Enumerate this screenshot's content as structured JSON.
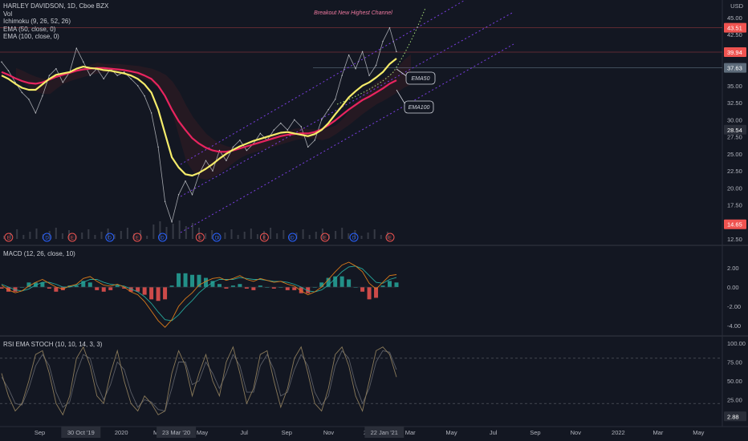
{
  "legend": {
    "symbol": "HARLEY DAVIDSON, 1D, Cboe BZX",
    "lines": [
      "Vol",
      "Ichimoku (9, 26, 52, 26)",
      "EMA (50, close, 0)",
      "EMA (100, close, 0)"
    ]
  },
  "currency": "USD",
  "panes": {
    "macd_title": "MACD (12, 26, close, 10)",
    "rsi_title": "RSI EMA STOCH (10, 10, 14, 3, 3)"
  },
  "annotations": {
    "channel": "Breakout New Highest Channel",
    "ema50": "EMA50",
    "ema100": "EMA100"
  },
  "colors": {
    "background": "#131722",
    "price_line": "#c8cacf",
    "ema50": "#f5ec6a",
    "ema100": "#e8245f",
    "channel": "#7b3fe4",
    "macd_line": "#d97a1a",
    "signal_line": "#26a69a",
    "hist_pos": "#26a69a",
    "hist_neg": "#ef5350",
    "stoch_k": "#8a7a5a",
    "stoch_d": "#5a5d66",
    "earnings": "#ef5350",
    "dividend": "#2962ff"
  },
  "chart_data": [
    {
      "type": "line",
      "pane": "price",
      "y_ticks": [
        "45.00",
        "42.50",
        "40.00",
        "37.50",
        "35.00",
        "32.50",
        "30.00",
        "27.50",
        "25.00",
        "22.50",
        "20.00",
        "17.50",
        "15.00",
        "12.50"
      ],
      "ylim": [
        12.5,
        45
      ],
      "price_labels": [
        {
          "value": 43.51,
          "text": "43.51",
          "color": "#ef5350"
        },
        {
          "value": 39.94,
          "text": "39.94",
          "color": "#ef5350"
        },
        {
          "value": 37.63,
          "text": "37.63",
          "color": "#5d6b7a"
        },
        {
          "value": 28.54,
          "text": "28.54",
          "color": "#2a2e39"
        },
        {
          "value": 14.65,
          "text": "14.65",
          "color": "#ef5350"
        }
      ],
      "series": [
        {
          "name": "price",
          "values": [
            38.5,
            37.2,
            35.5,
            34.0,
            33.0,
            31.0,
            33.5,
            36.5,
            37.5,
            35.5,
            37.0,
            40.5,
            38.5,
            36.5,
            37.5,
            36.0,
            37.5,
            36.5,
            37.0,
            36.0,
            35.0,
            33.5,
            31.0,
            26.0,
            18.0,
            15.0,
            19.0,
            21.0,
            19.0,
            22.0,
            24.0,
            22.5,
            25.5,
            24.0,
            26.0,
            27.0,
            25.5,
            26.5,
            28.0,
            27.0,
            28.5,
            29.5,
            28.5,
            30.0,
            29.0,
            26.0,
            27.0,
            30.0,
            31.5,
            33.0,
            36.5,
            39.5,
            37.5,
            40.0,
            36.5,
            38.0,
            41.5,
            43.5,
            40.0
          ]
        },
        {
          "name": "EMA50",
          "values": [
            36.5,
            36.0,
            35.3,
            34.7,
            34.4,
            34.4,
            35.2,
            36.0,
            36.6,
            36.8,
            37.0,
            37.5,
            37.8,
            37.6,
            37.5,
            37.3,
            37.2,
            37.0,
            36.8,
            36.5,
            36.0,
            35.2,
            34.0,
            31.5,
            28.0,
            24.5,
            23.0,
            22.0,
            21.8,
            22.2,
            22.8,
            23.5,
            24.3,
            25.0,
            25.6,
            26.1,
            26.5,
            26.9,
            27.2,
            27.5,
            27.8,
            28.1,
            28.2,
            28.0,
            27.8,
            27.6,
            27.9,
            28.5,
            29.5,
            30.8,
            32.0,
            33.3,
            34.2,
            35.0,
            35.5,
            36.2,
            37.0,
            38.2,
            39.0
          ]
        },
        {
          "name": "EMA100",
          "values": [
            37.0,
            36.6,
            36.1,
            35.7,
            35.4,
            35.3,
            35.5,
            35.9,
            36.3,
            36.6,
            36.9,
            37.2,
            37.4,
            37.5,
            37.6,
            37.6,
            37.5,
            37.4,
            37.3,
            37.1,
            36.9,
            36.5,
            36.0,
            35.0,
            33.5,
            31.5,
            29.8,
            28.5,
            27.3,
            26.5,
            25.9,
            25.5,
            25.3,
            25.3,
            25.5,
            25.8,
            26.1,
            26.4,
            26.7,
            27.0,
            27.3,
            27.6,
            27.8,
            27.9,
            28.0,
            28.0,
            28.2,
            28.6,
            29.2,
            29.9,
            30.7,
            31.5,
            32.2,
            32.9,
            33.4,
            34.0,
            34.6,
            35.3,
            35.8
          ]
        }
      ]
    },
    {
      "type": "bar",
      "pane": "macd",
      "y_ticks": [
        "2.00",
        "0.00",
        "-2.00",
        "-4.00"
      ],
      "ylim": [
        -4.6,
        3.1
      ],
      "series": [
        {
          "name": "MACD",
          "values": [
            0.2,
            -0.3,
            -0.6,
            -0.4,
            0.1,
            0.5,
            0.8,
            0.4,
            0.0,
            -0.2,
            0.1,
            0.3,
            0.9,
            1.1,
            0.6,
            0.2,
            0.1,
            0.3,
            0.0,
            -0.5,
            -0.8,
            -1.5,
            -2.5,
            -3.5,
            -4.2,
            -3.4,
            -2.0,
            -1.2,
            -0.6,
            0.2,
            0.6,
            0.9,
            1.0,
            0.7,
            0.9,
            1.2,
            0.8,
            0.6,
            0.9,
            0.7,
            0.5,
            0.6,
            0.3,
            0.1,
            -0.4,
            -0.8,
            -0.5,
            0.0,
            0.8,
            1.6,
            2.3,
            2.6,
            2.2,
            1.6,
            0.4,
            -0.2,
            0.5,
            1.2,
            1.3
          ]
        },
        {
          "name": "Signal",
          "values": [
            0.3,
            0.0,
            -0.3,
            -0.4,
            -0.2,
            0.2,
            0.5,
            0.5,
            0.3,
            0.0,
            0.0,
            0.2,
            0.5,
            0.8,
            0.8,
            0.5,
            0.3,
            0.2,
            0.1,
            -0.2,
            -0.5,
            -1.0,
            -1.7,
            -2.6,
            -3.4,
            -3.5,
            -2.9,
            -2.1,
            -1.4,
            -0.6,
            0.0,
            0.5,
            0.8,
            0.8,
            0.8,
            1.0,
            0.9,
            0.8,
            0.8,
            0.7,
            0.6,
            0.6,
            0.5,
            0.3,
            0.0,
            -0.4,
            -0.5,
            -0.3,
            0.2,
            0.9,
            1.6,
            2.1,
            2.2,
            1.9,
            1.2,
            0.5,
            0.4,
            0.8,
            1.0
          ]
        }
      ]
    },
    {
      "type": "line",
      "pane": "rsi_stoch",
      "y_ticks": [
        "100.00",
        "75.00",
        "50.00",
        "25.00"
      ],
      "ylim": [
        0,
        100
      ],
      "price_labels": [
        {
          "value": 2.88,
          "text": "2.88",
          "color": "#2a2e39"
        }
      ],
      "series": [
        {
          "name": "K",
          "values": [
            60,
            30,
            10,
            20,
            50,
            85,
            90,
            60,
            20,
            5,
            30,
            80,
            95,
            70,
            30,
            20,
            60,
            90,
            50,
            20,
            10,
            30,
            20,
            5,
            10,
            60,
            90,
            70,
            30,
            60,
            85,
            50,
            30,
            75,
            95,
            60,
            20,
            40,
            85,
            90,
            50,
            15,
            40,
            80,
            95,
            60,
            20,
            10,
            40,
            85,
            95,
            70,
            30,
            10,
            50,
            90,
            95,
            85,
            55
          ]
        },
        {
          "name": "D",
          "values": [
            55,
            40,
            20,
            18,
            40,
            70,
            85,
            70,
            35,
            15,
            22,
            60,
            85,
            80,
            45,
            25,
            45,
            75,
            65,
            35,
            15,
            25,
            22,
            12,
            10,
            40,
            75,
            75,
            45,
            50,
            75,
            60,
            40,
            60,
            85,
            70,
            35,
            35,
            70,
            85,
            65,
            30,
            35,
            65,
            85,
            70,
            35,
            18,
            30,
            70,
            90,
            80,
            45,
            20,
            40,
            75,
            90,
            88,
            65
          ]
        }
      ]
    }
  ],
  "x_axis": {
    "ticks": [
      {
        "label": "Sep",
        "t": 0.055
      },
      {
        "label": "30 Oct '19",
        "t": 0.112,
        "highlight": true
      },
      {
        "label": "2020",
        "t": 0.168
      },
      {
        "label": "Ma",
        "t": 0.218
      },
      {
        "label": "23 Mar '20",
        "t": 0.244,
        "highlight": true
      },
      {
        "label": "May",
        "t": 0.28
      },
      {
        "label": "Jul",
        "t": 0.338
      },
      {
        "label": "Sep",
        "t": 0.397
      },
      {
        "label": "Nov",
        "t": 0.455
      },
      {
        "label": "20",
        "t": 0.508
      },
      {
        "label": "22 Jan '21",
        "t": 0.532,
        "highlight": true
      },
      {
        "label": "Mar",
        "t": 0.568
      },
      {
        "label": "May",
        "t": 0.625
      },
      {
        "label": "Jul",
        "t": 0.683
      },
      {
        "label": "Sep",
        "t": 0.741
      },
      {
        "label": "Nov",
        "t": 0.797
      },
      {
        "label": "2022",
        "t": 0.856
      },
      {
        "label": "Mar",
        "t": 0.911
      },
      {
        "label": "May",
        "t": 0.967
      }
    ]
  },
  "events": [
    {
      "type": "earnings",
      "letter": "E",
      "t": 0.012
    },
    {
      "type": "dividend",
      "letter": "D",
      "t": 0.065
    },
    {
      "type": "earnings",
      "letter": "E",
      "t": 0.1
    },
    {
      "type": "dividend",
      "letter": "D",
      "t": 0.152
    },
    {
      "type": "earnings",
      "letter": "E",
      "t": 0.19
    },
    {
      "type": "dividend",
      "letter": "D",
      "t": 0.225
    },
    {
      "type": "earnings",
      "letter": "E",
      "t": 0.277
    },
    {
      "type": "dividend",
      "letter": "D",
      "t": 0.3
    },
    {
      "type": "earnings",
      "letter": "E",
      "t": 0.366
    },
    {
      "type": "dividend",
      "letter": "D",
      "t": 0.405
    },
    {
      "type": "earnings",
      "letter": "E",
      "t": 0.45
    },
    {
      "type": "dividend",
      "letter": "D",
      "t": 0.49
    },
    {
      "type": "earnings",
      "letter": "E",
      "t": 0.54
    }
  ]
}
